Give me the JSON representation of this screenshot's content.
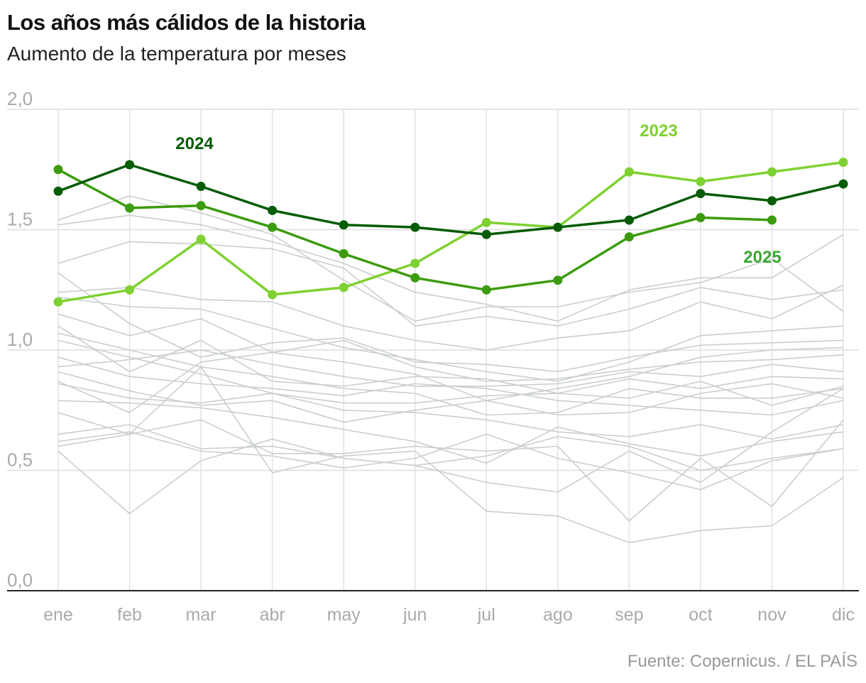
{
  "header": {
    "title": "Los años más cálidos de la historia",
    "subtitle": "Aumento de la temperatura por meses"
  },
  "footer": {
    "source": "Fuente: Copernicus. / EL PAÍS"
  },
  "chart_data": {
    "type": "line",
    "title": "Los años más cálidos de la historia",
    "subtitle": "Aumento de la temperatura por meses",
    "xlabel": "",
    "ylabel": "",
    "categories": [
      "ene",
      "feb",
      "mar",
      "abr",
      "may",
      "jun",
      "jul",
      "ago",
      "sep",
      "oct",
      "nov",
      "dic"
    ],
    "ylim": [
      0,
      2.0
    ],
    "yticks": [
      0.0,
      0.5,
      1.0,
      1.5,
      2.0
    ],
    "ytick_labels": [
      "0,0",
      "0,5",
      "1,0",
      "1,5",
      "2,0"
    ],
    "grid": true,
    "highlight_series": [
      {
        "name": "2024",
        "color": "#045c04",
        "label_color": "#045c04",
        "values": [
          1.66,
          1.77,
          1.68,
          1.58,
          1.52,
          1.51,
          1.48,
          1.51,
          1.54,
          1.65,
          1.62,
          1.69
        ]
      },
      {
        "name": "2023",
        "color": "#7fd131",
        "label_color": "#7fd131",
        "values": [
          1.2,
          1.25,
          1.46,
          1.23,
          1.26,
          1.36,
          1.53,
          1.51,
          1.74,
          1.7,
          1.74,
          1.78
        ]
      },
      {
        "name": "2025",
        "color": "#3c9b0e",
        "label_color": "#3aa832",
        "values": [
          1.75,
          1.59,
          1.6,
          1.51,
          1.4,
          1.3,
          1.25,
          1.29,
          1.47,
          1.55,
          1.54,
          null
        ]
      }
    ],
    "background_series": [
      {
        "values": [
          0.58,
          0.32,
          0.54,
          0.63,
          0.55,
          0.52,
          0.45,
          0.41,
          0.58,
          0.45,
          0.66,
          0.84
        ]
      },
      {
        "values": [
          0.6,
          0.65,
          0.93,
          0.49,
          0.56,
          0.58,
          0.33,
          0.31,
          0.2,
          0.25,
          0.27,
          0.47
        ]
      },
      {
        "values": [
          0.62,
          0.66,
          0.58,
          0.56,
          0.51,
          0.55,
          0.65,
          0.55,
          0.49,
          0.42,
          0.54,
          0.59
        ]
      },
      {
        "values": [
          0.65,
          0.69,
          0.59,
          0.6,
          0.55,
          0.52,
          0.56,
          0.64,
          0.6,
          0.5,
          0.55,
          0.59
        ]
      },
      {
        "values": [
          0.74,
          0.65,
          0.71,
          0.57,
          0.57,
          0.6,
          0.58,
          0.6,
          0.29,
          0.55,
          0.35,
          0.71
        ]
      },
      {
        "values": [
          0.79,
          0.78,
          0.76,
          0.72,
          0.67,
          0.62,
          0.53,
          0.68,
          0.61,
          0.56,
          0.62,
          0.66
        ]
      },
      {
        "values": [
          0.86,
          0.8,
          0.78,
          0.82,
          0.75,
          0.74,
          0.71,
          0.66,
          0.64,
          0.69,
          0.63,
          0.69
        ]
      },
      {
        "values": [
          0.91,
          0.83,
          0.77,
          0.79,
          0.7,
          0.75,
          0.79,
          0.73,
          0.74,
          0.82,
          0.86,
          0.8
        ]
      },
      {
        "values": [
          0.97,
          0.89,
          0.86,
          0.84,
          0.81,
          0.86,
          0.84,
          0.79,
          0.77,
          0.75,
          0.73,
          0.79
        ]
      },
      {
        "values": [
          1.04,
          0.97,
          0.9,
          0.82,
          0.78,
          0.78,
          0.81,
          0.82,
          0.8,
          0.87,
          0.77,
          0.85
        ]
      },
      {
        "values": [
          1.07,
          1.0,
          0.93,
          0.89,
          0.84,
          0.82,
          0.73,
          0.74,
          0.84,
          0.8,
          0.8,
          0.84
        ]
      },
      {
        "values": [
          1.1,
          0.91,
          1.04,
          0.87,
          0.85,
          0.89,
          0.88,
          0.82,
          0.88,
          0.84,
          0.89,
          0.88
        ]
      },
      {
        "values": [
          0.93,
          0.96,
          1.0,
          0.94,
          0.89,
          0.85,
          0.85,
          0.86,
          0.91,
          0.89,
          0.94,
          0.91
        ]
      },
      {
        "values": [
          0.87,
          0.74,
          0.95,
          0.99,
          1.04,
          0.93,
          0.87,
          0.88,
          0.92,
          0.95,
          0.96,
          0.98
        ]
      },
      {
        "values": [
          1.15,
          1.06,
          1.13,
          0.99,
          0.95,
          0.9,
          0.79,
          0.84,
          0.89,
          0.97,
          1.0,
          1.01
        ]
      },
      {
        "values": [
          1.32,
          1.11,
          0.97,
          1.03,
          1.05,
          0.95,
          0.94,
          0.91,
          0.97,
          1.02,
          1.03,
          1.04
        ]
      },
      {
        "values": [
          1.22,
          1.18,
          1.17,
          1.09,
          1.01,
          0.96,
          0.91,
          0.87,
          0.95,
          1.06,
          1.08,
          1.1
        ]
      },
      {
        "values": [
          1.24,
          1.26,
          1.21,
          1.2,
          1.1,
          1.04,
          1.0,
          1.05,
          1.08,
          1.2,
          1.13,
          1.27
        ]
      },
      {
        "values": [
          1.36,
          1.45,
          1.44,
          1.42,
          1.34,
          1.1,
          1.14,
          1.1,
          1.17,
          1.26,
          1.21,
          1.25
        ]
      },
      {
        "values": [
          1.52,
          1.56,
          1.52,
          1.45,
          1.36,
          1.24,
          1.19,
          1.12,
          1.25,
          1.3,
          1.3,
          1.48
        ]
      },
      {
        "values": [
          1.54,
          1.64,
          1.57,
          1.48,
          1.29,
          1.12,
          1.18,
          1.18,
          1.24,
          1.28,
          1.38,
          1.16
        ]
      }
    ],
    "annotations": [
      {
        "text": "2024",
        "series": "2024"
      },
      {
        "text": "2023",
        "series": "2023"
      },
      {
        "text": "2025",
        "series": "2025"
      }
    ]
  }
}
